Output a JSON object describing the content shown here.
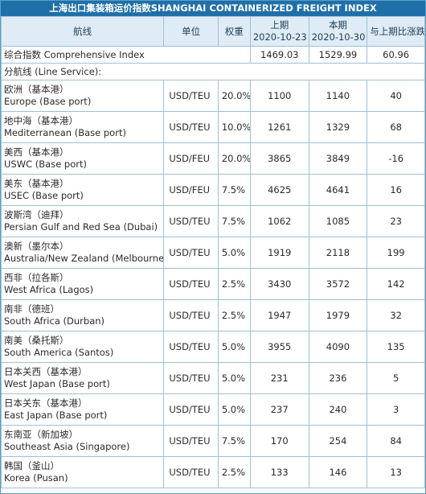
{
  "title": "上海出口集装箱运价指数SHANGHAI CONTAINERIZED FREIGHT INDEX",
  "headers": {
    "route": "航线",
    "unit": "单位",
    "weight": "权重",
    "prev_label": "上期",
    "prev_date": "2020-10-23",
    "cur_label": "本期",
    "cur_date": "2020-10-30",
    "change": "与上期比涨跌"
  },
  "composite": {
    "label": "综合指数 Comprehensive Index",
    "prev": "1469.03",
    "cur": "1529.99",
    "change": "60.96"
  },
  "section_label": "分航线 (Line Service):",
  "routes": [
    {
      "zh": "欧洲（基本港）",
      "en": "Europe (Base port)",
      "unit": "USD/TEU",
      "weight": "20.0%",
      "prev": "1100",
      "cur": "1140",
      "change": "40"
    },
    {
      "zh": "地中海（基本港）",
      "en": "Mediterranean (Base port)",
      "unit": "USD/TEU",
      "weight": "10.0%",
      "prev": "1261",
      "cur": "1329",
      "change": "68"
    },
    {
      "zh": "美西（基本港）",
      "en": "USWC (Base port)",
      "unit": "USD/FEU",
      "weight": "20.0%",
      "prev": "3865",
      "cur": "3849",
      "change": "-16"
    },
    {
      "zh": "美东（基本港）",
      "en": "USEC (Base port)",
      "unit": "USD/FEU",
      "weight": "7.5%",
      "prev": "4625",
      "cur": "4641",
      "change": "16"
    },
    {
      "zh": "波斯湾（迪拜）",
      "en": "Persian Gulf and Red Sea (Dubai)",
      "unit": "USD/TEU",
      "weight": "7.5%",
      "prev": "1062",
      "cur": "1085",
      "change": "23"
    },
    {
      "zh": "澳新（墨尔本）",
      "en": "Australia/New Zealand (Melbourne)",
      "unit": "USD/TEU",
      "weight": "5.0%",
      "prev": "1919",
      "cur": "2118",
      "change": "199"
    },
    {
      "zh": "西非（拉各斯）",
      "en": "West Africa (Lagos)",
      "unit": "USD/TEU",
      "weight": "2.5%",
      "prev": "3430",
      "cur": "3572",
      "change": "142"
    },
    {
      "zh": "南非（德班）",
      "en": "South Africa (Durban)",
      "unit": "USD/TEU",
      "weight": "2.5%",
      "prev": "1947",
      "cur": "1979",
      "change": "32"
    },
    {
      "zh": "南美（桑托斯）",
      "en": "South America (Santos)",
      "unit": "USD/TEU",
      "weight": "5.0%",
      "prev": "3955",
      "cur": "4090",
      "change": "135"
    },
    {
      "zh": "日本关西（基本港）",
      "en": "West Japan (Base port)",
      "unit": "USD/TEU",
      "weight": "5.0%",
      "prev": "231",
      "cur": "236",
      "change": "5"
    },
    {
      "zh": "日本关东（基本港）",
      "en": "East Japan (Base port)",
      "unit": "USD/TEU",
      "weight": "5.0%",
      "prev": "237",
      "cur": "240",
      "change": "3"
    },
    {
      "zh": "东南亚（新加坡）",
      "en": "Southeast Asia (Singapore)",
      "unit": "USD/TEU",
      "weight": "7.5%",
      "prev": "170",
      "cur": "254",
      "change": "84"
    },
    {
      "zh": "韩国（釜山）",
      "en": "Korea (Pusan)",
      "unit": "USD/TEU",
      "weight": "2.5%",
      "prev": "133",
      "cur": "146",
      "change": "13"
    }
  ]
}
